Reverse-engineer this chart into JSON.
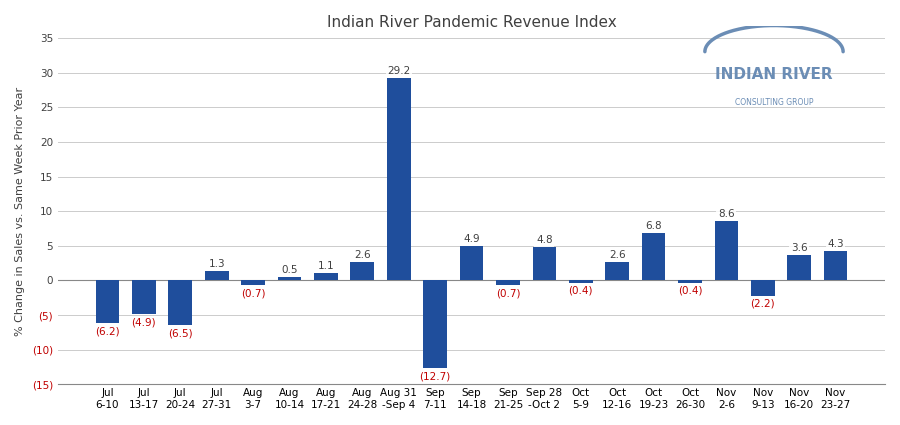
{
  "title": "Indian River Pandemic Revenue Index",
  "ylabel": "% Change in Sales vs. Same Week Prior Year",
  "categories": [
    "Jul\n6-10",
    "Jul\n13-17",
    "Jul\n20-24",
    "Jul\n27-31",
    "Aug\n3-7",
    "Aug\n10-14",
    "Aug\n17-21",
    "Aug\n24-28",
    "Aug 31\n-Sep 4",
    "Sep\n7-11",
    "Sep\n14-18",
    "Sep\n21-25",
    "Sep 28\n-Oct 2",
    "Oct\n5-9",
    "Oct\n12-16",
    "Oct\n19-23",
    "Oct\n26-30",
    "Nov\n2-6",
    "Nov\n9-13",
    "Nov\n16-20",
    "Nov\n23-27"
  ],
  "values": [
    -6.2,
    -4.9,
    -6.5,
    1.3,
    -0.7,
    0.5,
    1.1,
    2.6,
    29.2,
    -12.7,
    4.9,
    -0.7,
    4.8,
    -0.4,
    2.6,
    6.8,
    -0.4,
    8.6,
    -2.2,
    3.6,
    4.3
  ],
  "bar_color": "#1F4E9C",
  "label_color_positive": "#404040",
  "label_color_negative": "#C00000",
  "background_color": "#FFFFFF",
  "ylim_min": -15,
  "ylim_max": 35,
  "yticks": [
    -15,
    -10,
    -5,
    0,
    5,
    10,
    15,
    20,
    25,
    30,
    35
  ],
  "grid_color": "#CCCCCC",
  "title_fontsize": 11,
  "label_fontsize": 7.5,
  "tick_fontsize": 7.5,
  "logo_text1": "INDIAN RIVER",
  "logo_text2": "CONSULTING GROUP",
  "logo_color": "#6B8DB5"
}
